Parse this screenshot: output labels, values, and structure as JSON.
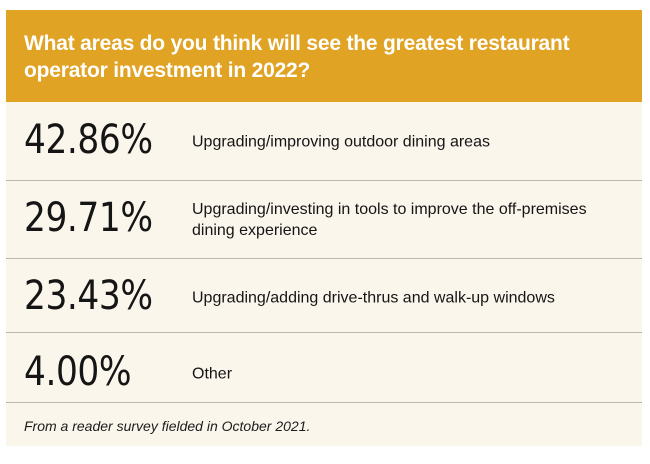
{
  "chart_data": {
    "type": "table",
    "title": "What areas do you think will see the greatest restaurant operator investment in 2022?",
    "rows": [
      {
        "value": 42.86,
        "value_text": "42.86%",
        "label": "Upgrading/improving outdoor dining areas"
      },
      {
        "value": 29.71,
        "value_text": "29.71%",
        "label": "Upgrading/investing in tools to improve the off-premises dining experience"
      },
      {
        "value": 23.43,
        "value_text": "23.43%",
        "label": "Upgrading/adding drive-thrus and walk-up windows"
      },
      {
        "value": 4.0,
        "value_text": "4.00%",
        "label": "Other"
      }
    ],
    "footnote": "From a reader survey fielded in October 2021."
  },
  "colors": {
    "header_background": "#e0a324",
    "header_text": "#ffffff",
    "body_background": "#fbf6ec",
    "divider": "#bdb6ab",
    "text": "#151515"
  }
}
